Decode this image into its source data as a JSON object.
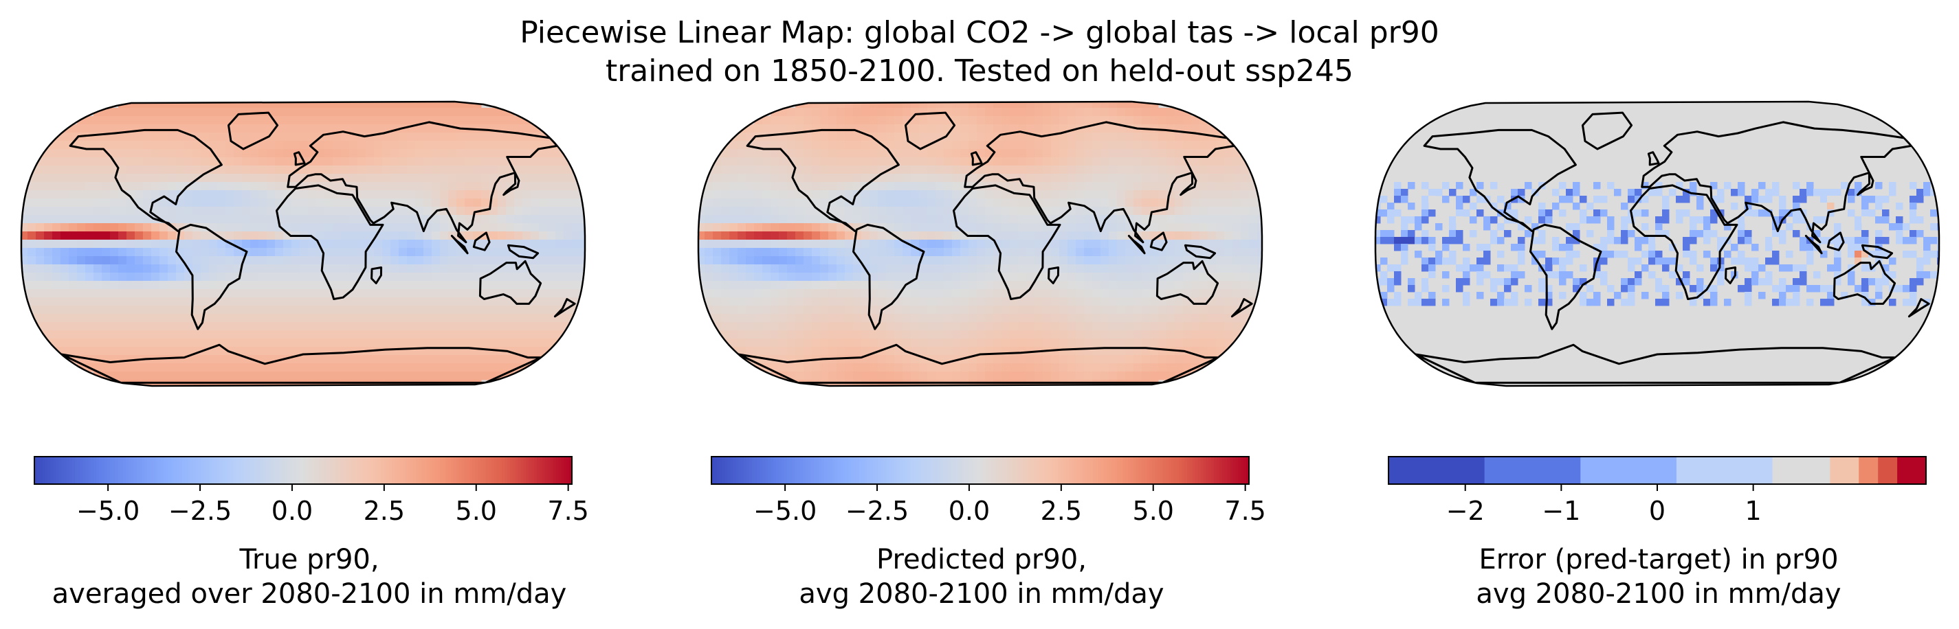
{
  "title": {
    "line1": "Piecewise Linear Map: global CO2 -> global tas -> local pr90",
    "line2": "trained on 1850-2100. Tested on held-out ssp245"
  },
  "chart_data": [
    {
      "type": "heatmap",
      "projection": "Robinson",
      "description": "",
      "colormap": "coolwarm",
      "colorbar": {
        "range": [
          -7.0,
          7.6
        ],
        "ticks": [
          -5.0,
          -2.5,
          0.0,
          2.5,
          5.0,
          7.5
        ],
        "tick_labels": [
          "−5.0",
          "−2.5",
          "0.0",
          "2.5",
          "5.0",
          "7.5"
        ],
        "label_line1": "True pr90,",
        "label_line2": "averaged over 2080-2100 in mm/day"
      }
    },
    {
      "type": "heatmap",
      "projection": "Robinson",
      "description": "",
      "colormap": "coolwarm",
      "colorbar": {
        "range": [
          -7.0,
          7.6
        ],
        "ticks": [
          -5.0,
          -2.5,
          0.0,
          2.5,
          5.0,
          7.5
        ],
        "tick_labels": [
          "−5.0",
          "−2.5",
          "0.0",
          "2.5",
          "5.0",
          "7.5"
        ],
        "label_line1": "Predicted pr90,",
        "label_line2": "avg 2080-2100 in mm/day"
      }
    },
    {
      "type": "heatmap",
      "projection": "Robinson",
      "description": "",
      "colormap": "coolwarm (discrete, 9 levels)",
      "colorbar": {
        "range": [
          -2.8,
          2.8
        ],
        "ticks": [
          -2,
          -1,
          0,
          1
        ],
        "tick_labels": [
          "−2",
          "−1",
          "0",
          "1"
        ],
        "levels": [
          -2.8,
          -1.8,
          -0.8,
          0.2,
          1.2,
          1.8,
          2.1,
          2.3,
          2.5,
          2.8
        ],
        "level_colors": [
          "#3b4cc0",
          "#5a78e4",
          "#8fb1fe",
          "#bcd2f8",
          "#dddcdc",
          "#f3c4ac",
          "#ee8a6c",
          "#d75445",
          "#b40426"
        ],
        "label_line1": "Error (pred-target) in pr90",
        "label_line2": "avg 2080-2100 in mm/day"
      }
    }
  ]
}
